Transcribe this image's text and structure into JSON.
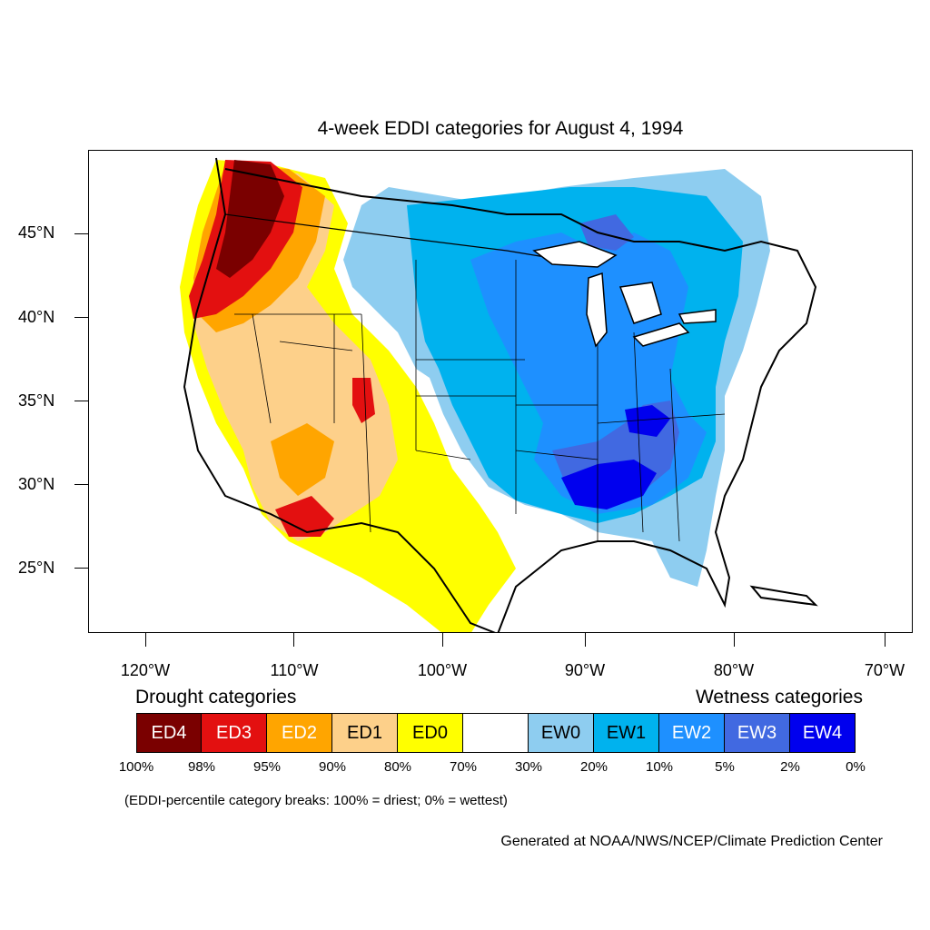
{
  "map": {
    "title": "4-week EDDI categories for August 4, 1994",
    "region": "Contiguous United States",
    "lat_labels": [
      "45°N",
      "40°N",
      "35°N",
      "30°N",
      "25°N"
    ],
    "lon_labels": [
      "120°W",
      "110°W",
      "100°W",
      "90°W",
      "80°W",
      "70°W"
    ],
    "lon_range": [
      -124,
      -68.5
    ],
    "lat_range": [
      21,
      49.7
    ]
  },
  "legend": {
    "drought_heading": "Drought categories",
    "wetness_heading": "Wetness categories",
    "categories": [
      {
        "label": "ED4",
        "color": "#7a0000",
        "text_color": "#ffffff"
      },
      {
        "label": "ED3",
        "color": "#e31010",
        "text_color": "#ffffff"
      },
      {
        "label": "ED2",
        "color": "#ffa500",
        "text_color": "#ffffff"
      },
      {
        "label": "ED1",
        "color": "#fdd08a",
        "text_color": "#000000"
      },
      {
        "label": "ED0",
        "color": "#ffff00",
        "text_color": "#000000"
      },
      {
        "label": "",
        "color": "#ffffff",
        "text_color": "#000000"
      },
      {
        "label": "EW0",
        "color": "#8ecdf0",
        "text_color": "#000000"
      },
      {
        "label": "EW1",
        "color": "#00b2ee",
        "text_color": "#000000"
      },
      {
        "label": "EW2",
        "color": "#1e90ff",
        "text_color": "#ffffff"
      },
      {
        "label": "EW3",
        "color": "#4169e1",
        "text_color": "#ffffff"
      },
      {
        "label": "EW4",
        "color": "#0000ee",
        "text_color": "#ffffff"
      }
    ],
    "breaks": [
      "100%",
      "98%",
      "95%",
      "90%",
      "80%",
      "70%",
      "30%",
      "20%",
      "10%",
      "5%",
      "2%",
      "0%"
    ],
    "note": "(EDDI-percentile category breaks: 100% = driest; 0% = wettest)"
  },
  "credit": "Generated at NOAA/NWS/NCEP/Climate Prediction Center"
}
